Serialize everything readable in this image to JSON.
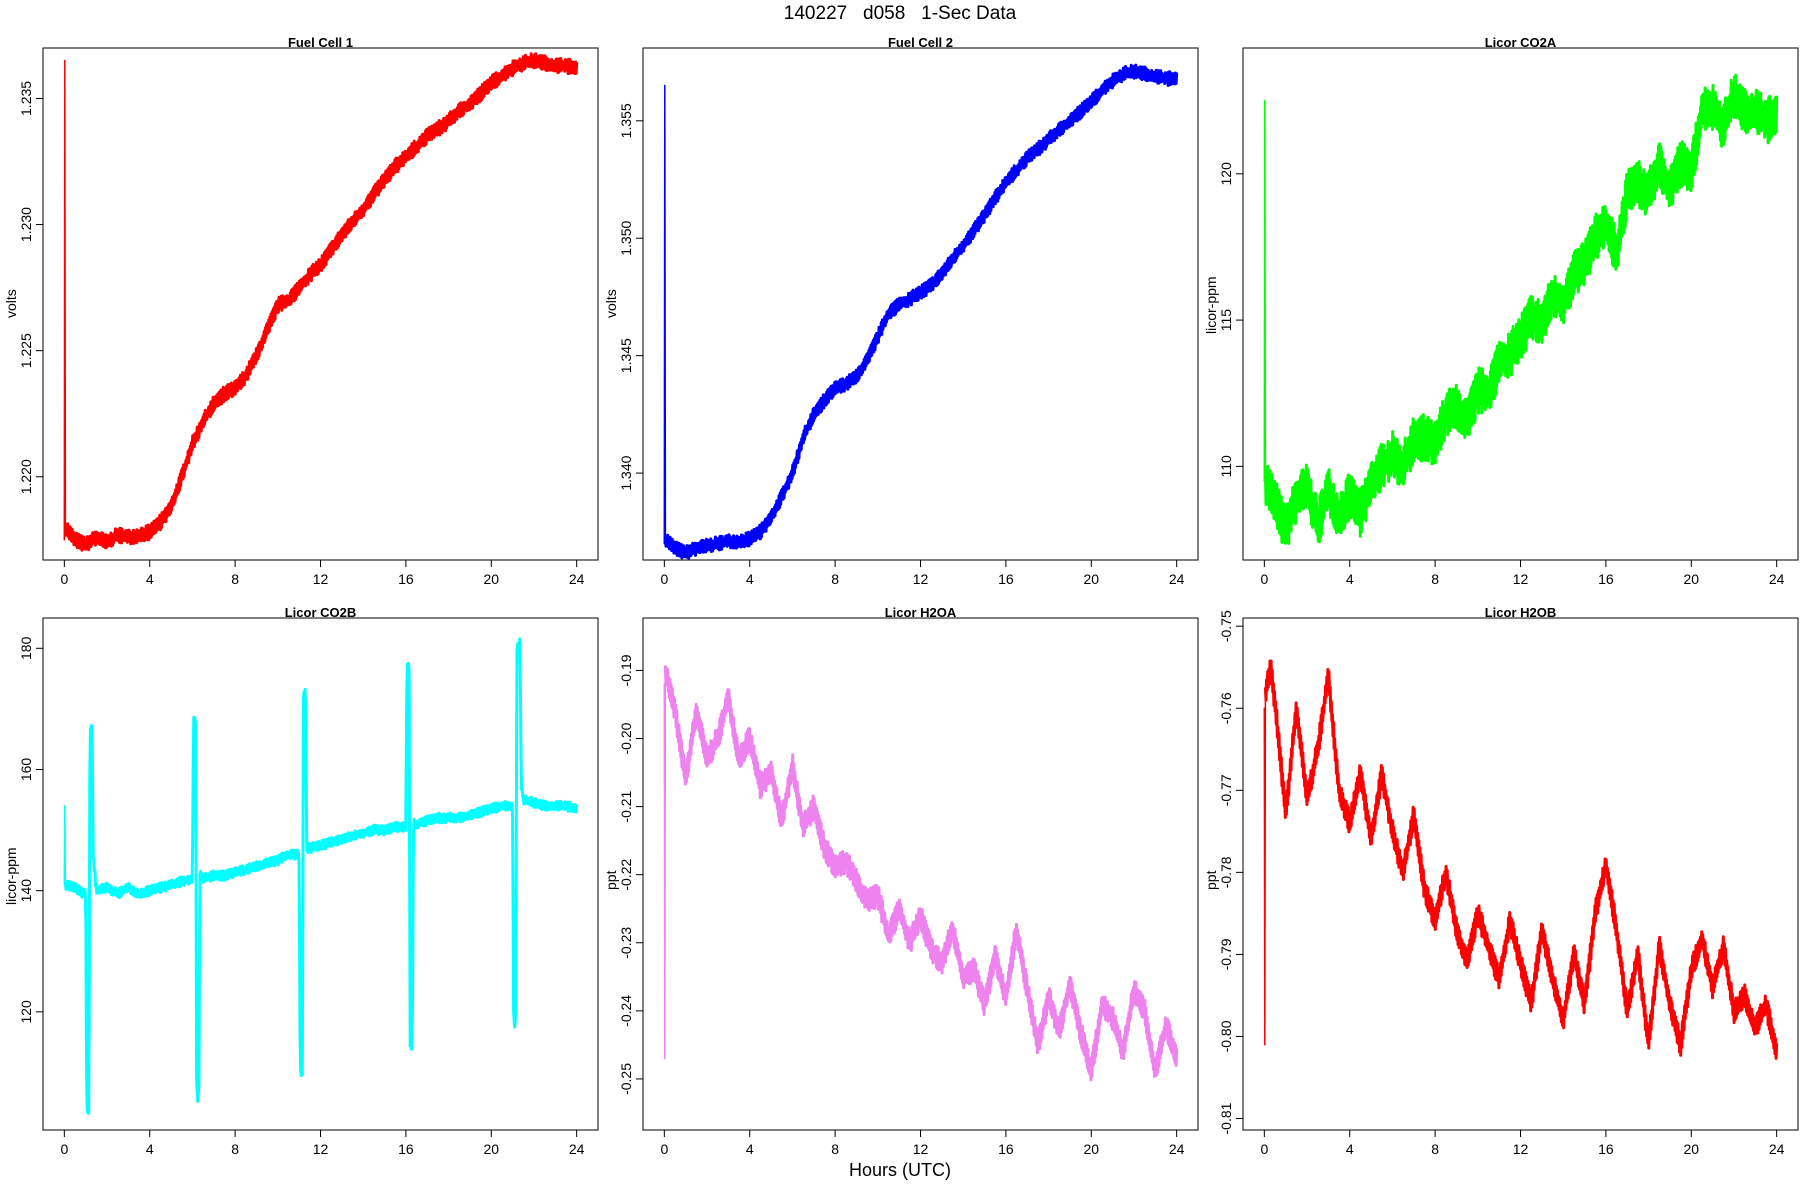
{
  "title": "140227   d058   1-Sec Data",
  "shared_xlabel": "Hours (UTC)",
  "chart_data": [
    {
      "id": "fc1",
      "type": "line",
      "title": "Fuel Cell 1",
      "ylabel": "volts",
      "color": "#ff0000",
      "xlim": [
        -1,
        25
      ],
      "ylim": [
        1.2167,
        1.237
      ],
      "xticks": [
        0,
        4,
        8,
        12,
        16,
        20,
        24
      ],
      "yticks": [
        1.22,
        1.225,
        1.23,
        1.235
      ],
      "ytick_labels": [
        "1.220",
        "1.225",
        "1.230",
        "1.235"
      ],
      "series": [
        {
          "x": [
            0,
            0.02,
            0.05,
            0.5,
            1,
            1.5,
            2,
            2.5,
            3,
            3.5,
            4,
            4.5,
            5,
            5.5,
            6,
            6.5,
            7,
            7.5,
            8,
            8.5,
            9,
            9.5,
            10,
            10.5,
            11,
            11.5,
            12,
            12.5,
            13,
            13.5,
            14,
            14.5,
            15,
            15.5,
            16,
            16.5,
            17,
            17.5,
            18,
            18.5,
            19,
            19.5,
            20,
            20.5,
            21,
            21.5,
            22,
            22.5,
            23,
            23.5,
            24
          ],
          "y": [
            1.2175,
            1.2365,
            1.218,
            1.2175,
            1.2173,
            1.2176,
            1.2174,
            1.2177,
            1.2176,
            1.2177,
            1.2178,
            1.2182,
            1.2188,
            1.22,
            1.2213,
            1.2222,
            1.2229,
            1.2233,
            1.2235,
            1.224,
            1.2248,
            1.2258,
            1.2268,
            1.227,
            1.2275,
            1.228,
            1.2284,
            1.229,
            1.2296,
            1.2301,
            1.2306,
            1.2312,
            1.2318,
            1.2323,
            1.2327,
            1.2331,
            1.2335,
            1.2338,
            1.2341,
            1.2345,
            1.2348,
            1.2352,
            1.2356,
            1.2359,
            1.2362,
            1.2364,
            1.2365,
            1.2364,
            1.2363,
            1.2363,
            1.2362
          ],
          "band": 0.0003
        }
      ]
    },
    {
      "id": "fc2",
      "type": "line",
      "title": "Fuel Cell 2",
      "ylabel": "volts",
      "color": "#0000ff",
      "xlim": [
        -1,
        25
      ],
      "ylim": [
        1.3363,
        1.3581
      ],
      "xticks": [
        0,
        4,
        8,
        12,
        16,
        20,
        24
      ],
      "yticks": [
        1.34,
        1.345,
        1.35,
        1.355
      ],
      "ytick_labels": [
        "1.340",
        "1.345",
        "1.350",
        "1.355"
      ],
      "series": [
        {
          "x": [
            0,
            0.02,
            0.05,
            0.5,
            1,
            1.5,
            2,
            2.5,
            3,
            3.5,
            4,
            4.5,
            5,
            5.5,
            6,
            6.5,
            7,
            7.5,
            8,
            8.5,
            9,
            9.5,
            10,
            10.5,
            11,
            11.5,
            12,
            12.5,
            13,
            13.5,
            14,
            14.5,
            15,
            15.5,
            16,
            16.5,
            17,
            17.5,
            18,
            18.5,
            19,
            19.5,
            20,
            20.5,
            21,
            21.5,
            22,
            22.5,
            23,
            23.5,
            24
          ],
          "y": [
            1.337,
            1.3565,
            1.3372,
            1.3368,
            1.3366,
            1.3368,
            1.3369,
            1.337,
            1.3371,
            1.3371,
            1.3372,
            1.3375,
            1.3381,
            1.339,
            1.34,
            1.3415,
            1.3425,
            1.3431,
            1.3436,
            1.3438,
            1.3441,
            1.3448,
            1.3458,
            1.3468,
            1.3472,
            1.3474,
            1.3477,
            1.348,
            1.3485,
            1.3491,
            1.3497,
            1.3503,
            1.351,
            1.3517,
            1.3524,
            1.3529,
            1.3534,
            1.3538,
            1.3542,
            1.3546,
            1.355,
            1.3554,
            1.3558,
            1.3563,
            1.3567,
            1.357,
            1.3571,
            1.357,
            1.3569,
            1.3568,
            1.3568
          ],
          "band": 0.0003
        }
      ]
    },
    {
      "id": "co2a",
      "type": "line",
      "title": "Licor CO2A",
      "ylabel": "licor-ppm",
      "color": "#00ff00",
      "xlim": [
        -1,
        25
      ],
      "ylim": [
        106.8,
        124.3
      ],
      "xticks": [
        0,
        4,
        8,
        12,
        16,
        20,
        24
      ],
      "yticks": [
        110,
        115,
        120
      ],
      "ytick_labels": [
        "110",
        "115",
        "120"
      ],
      "series": [
        {
          "x": [
            0,
            0.02,
            0.05,
            0.5,
            1,
            1.5,
            2,
            2.5,
            3,
            3.5,
            4,
            4.5,
            5,
            5.5,
            6,
            6.5,
            7,
            7.5,
            8,
            8.5,
            9,
            9.5,
            10,
            10.5,
            11,
            11.5,
            12,
            12.5,
            13,
            13.5,
            14,
            14.5,
            15,
            15.5,
            16,
            16.5,
            17,
            17.5,
            18,
            18.5,
            19,
            19.5,
            20,
            20.5,
            21,
            21.5,
            22,
            22.5,
            23,
            23.5,
            24
          ],
          "y": [
            109.5,
            122.5,
            109.5,
            108.8,
            107.8,
            108.9,
            109.3,
            108.0,
            109.2,
            108.3,
            109.0,
            108.4,
            109.4,
            110.0,
            110.4,
            110.0,
            110.9,
            111.0,
            110.7,
            111.8,
            112.0,
            111.5,
            112.6,
            112.5,
            113.6,
            113.8,
            114.4,
            115.1,
            114.9,
            115.8,
            115.6,
            116.5,
            117.0,
            117.8,
            118.3,
            117.3,
            119.3,
            119.7,
            119.3,
            120.3,
            119.5,
            120.4,
            120.0,
            122.2,
            122.3,
            121.6,
            122.7,
            122.1,
            122.2,
            121.8,
            122.0
          ],
          "band": 0.8
        }
      ]
    },
    {
      "id": "co2b",
      "type": "line",
      "title": "Licor CO2B",
      "ylabel": "licor-ppm",
      "color": "#00ffff",
      "xlim": [
        -1,
        25
      ],
      "ylim": [
        100.5,
        185.0
      ],
      "xticks": [
        0,
        4,
        8,
        12,
        16,
        20,
        24
      ],
      "yticks": [
        120,
        140,
        160,
        180
      ],
      "ytick_labels": [
        "120",
        "140",
        "160",
        "180"
      ],
      "series": [
        {
          "x": [
            0,
            0.02,
            0.05,
            0.5,
            0.9,
            1.0,
            1.05,
            1.15,
            1.2,
            1.3,
            1.35,
            1.5,
            2,
            2.5,
            3,
            3.5,
            4,
            4.5,
            5,
            5.5,
            6.0,
            6.05,
            6.15,
            6.2,
            6.3,
            6.35,
            6.5,
            7,
            7.5,
            8,
            8.5,
            9,
            9.5,
            10,
            10.5,
            11.0,
            11.05,
            11.15,
            11.2,
            11.3,
            11.35,
            11.5,
            12,
            12.5,
            13,
            13.5,
            14,
            14.5,
            15,
            15.5,
            16.0,
            16.05,
            16.15,
            16.2,
            16.3,
            16.35,
            16.5,
            17,
            17.5,
            18,
            18.5,
            19,
            19.5,
            20,
            20.5,
            21.0,
            21.05,
            21.15,
            21.2,
            21.35,
            21.4,
            21.5,
            22,
            22.5,
            23,
            23.5,
            24
          ],
          "y": [
            141,
            154,
            141,
            140.5,
            139.5,
            140,
            104,
            104,
            166,
            167,
            146,
            140,
            140.5,
            139.5,
            140.5,
            139.5,
            140,
            140.5,
            141,
            141.5,
            142,
            168,
            168,
            106,
            106,
            143,
            142,
            142.5,
            142.5,
            143,
            143.5,
            144,
            144.5,
            145,
            146,
            146,
            110,
            110,
            172,
            173,
            147,
            147,
            147.5,
            148,
            148.5,
            149,
            149.5,
            150,
            150,
            150.5,
            150.5,
            177,
            177,
            115,
            114,
            151,
            151,
            151.5,
            152,
            152,
            152,
            152.5,
            153,
            153.5,
            154,
            154,
            118,
            118,
            180,
            181,
            158,
            155,
            154.5,
            154,
            154,
            154,
            153.5
          ],
          "band": 0.8
        }
      ]
    },
    {
      "id": "h2oa",
      "type": "line",
      "title": "Licor H2OA",
      "ylabel": "ppt",
      "color": "#ee82ee",
      "xlim": [
        -1,
        25
      ],
      "ylim": [
        -0.2575,
        -0.1823
      ],
      "xticks": [
        0,
        4,
        8,
        12,
        16,
        20,
        24
      ],
      "yticks": [
        -0.25,
        -0.24,
        -0.23,
        -0.22,
        -0.21,
        -0.2,
        -0.19
      ],
      "ytick_labels": [
        "-0.25",
        "-0.24",
        "-0.23",
        "-0.22",
        "-0.21",
        "-0.20",
        "-0.19"
      ],
      "series": [
        {
          "x": [
            0,
            0.02,
            0.05,
            0.5,
            1,
            1.5,
            2,
            2.5,
            3,
            3.5,
            4,
            4.5,
            5,
            5.5,
            6,
            6.5,
            7,
            7.5,
            8,
            8.5,
            9,
            9.5,
            10,
            10.5,
            11,
            11.5,
            12,
            12.5,
            13,
            13.5,
            14,
            14.5,
            15,
            15.5,
            16,
            16.5,
            17,
            17.5,
            18,
            18.5,
            19,
            19.5,
            20,
            20.5,
            21,
            21.5,
            22,
            22.5,
            23,
            23.5,
            24
          ],
          "y": [
            -0.192,
            -0.247,
            -0.19,
            -0.196,
            -0.206,
            -0.196,
            -0.203,
            -0.2,
            -0.194,
            -0.203,
            -0.2,
            -0.207,
            -0.205,
            -0.212,
            -0.204,
            -0.213,
            -0.21,
            -0.216,
            -0.219,
            -0.218,
            -0.221,
            -0.224,
            -0.223,
            -0.229,
            -0.225,
            -0.23,
            -0.226,
            -0.231,
            -0.233,
            -0.228,
            -0.235,
            -0.234,
            -0.239,
            -0.232,
            -0.238,
            -0.228,
            -0.237,
            -0.245,
            -0.238,
            -0.243,
            -0.236,
            -0.243,
            -0.249,
            -0.239,
            -0.241,
            -0.246,
            -0.237,
            -0.24,
            -0.249,
            -0.242,
            -0.247
          ],
          "band": 0.0018
        }
      ]
    },
    {
      "id": "h2ob",
      "type": "line",
      "title": "Licor H2OB",
      "ylabel": "ppt",
      "color": "#ff0000",
      "xlim": [
        -1,
        25
      ],
      "ylim": [
        -0.8114,
        -0.749
      ],
      "xticks": [
        0,
        4,
        8,
        12,
        16,
        20,
        24
      ],
      "yticks": [
        -0.81,
        -0.8,
        -0.79,
        -0.78,
        -0.77,
        -0.76,
        -0.75
      ],
      "ytick_labels": [
        "-0.81",
        "-0.80",
        "-0.79",
        "-0.78",
        "-0.77",
        "-0.76",
        "-0.75"
      ],
      "series": [
        {
          "x": [
            0,
            0.02,
            0.05,
            0.3,
            0.6,
            1,
            1.5,
            2,
            2.5,
            3,
            3.5,
            4,
            4.5,
            5,
            5.5,
            6,
            6.5,
            7,
            7.5,
            8,
            8.5,
            9,
            9.5,
            10,
            10.5,
            11,
            11.5,
            12,
            12.5,
            13,
            13.5,
            14,
            14.5,
            15,
            15.5,
            16,
            16.5,
            17,
            17.5,
            18,
            18.5,
            19,
            19.5,
            20,
            20.5,
            21,
            21.5,
            22,
            22.5,
            23,
            23.5,
            24
          ],
          "y": [
            -0.76,
            -0.801,
            -0.758,
            -0.755,
            -0.762,
            -0.773,
            -0.76,
            -0.771,
            -0.765,
            -0.756,
            -0.77,
            -0.774,
            -0.768,
            -0.776,
            -0.768,
            -0.775,
            -0.78,
            -0.773,
            -0.782,
            -0.786,
            -0.78,
            -0.787,
            -0.791,
            -0.785,
            -0.789,
            -0.793,
            -0.786,
            -0.791,
            -0.796,
            -0.787,
            -0.793,
            -0.798,
            -0.79,
            -0.796,
            -0.785,
            -0.779,
            -0.787,
            -0.797,
            -0.79,
            -0.801,
            -0.789,
            -0.796,
            -0.801,
            -0.792,
            -0.788,
            -0.794,
            -0.789,
            -0.797,
            -0.795,
            -0.799,
            -0.796,
            -0.802
          ],
          "band": 0.0014
        }
      ]
    }
  ]
}
